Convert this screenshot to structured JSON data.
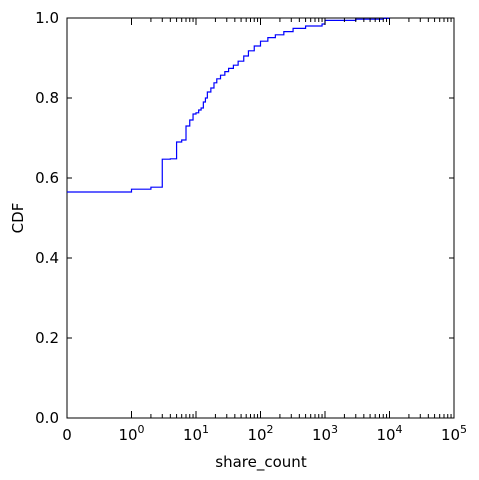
{
  "chart_data": {
    "type": "line",
    "title": "",
    "xlabel": "share_count",
    "ylabel": "CDF",
    "x_scale": "symlog",
    "xlim": [
      0,
      100000
    ],
    "ylim": [
      0,
      1
    ],
    "grid": false,
    "x_tick_labels": [
      {
        "value": 0,
        "base": "0",
        "exp": ""
      },
      {
        "value": 1,
        "base": "10",
        "exp": "0"
      },
      {
        "value": 10,
        "base": "10",
        "exp": "1"
      },
      {
        "value": 100,
        "base": "10",
        "exp": "2"
      },
      {
        "value": 1000,
        "base": "10",
        "exp": "3"
      },
      {
        "value": 10000,
        "base": "10",
        "exp": "4"
      },
      {
        "value": 100000,
        "base": "10",
        "exp": "5"
      }
    ],
    "y_ticks": [
      "0.0",
      "0.2",
      "0.4",
      "0.6",
      "0.8",
      "1.0"
    ],
    "series": [
      {
        "name": "",
        "color": "#0000ff",
        "step": true,
        "points": [
          [
            0,
            0.565
          ],
          [
            1,
            0.572
          ],
          [
            2,
            0.577
          ],
          [
            3,
            0.647
          ],
          [
            4,
            0.648
          ],
          [
            5,
            0.69
          ],
          [
            6,
            0.695
          ],
          [
            7,
            0.73
          ],
          [
            8,
            0.745
          ],
          [
            9,
            0.76
          ],
          [
            10,
            0.763
          ],
          [
            11,
            0.77
          ],
          [
            12,
            0.775
          ],
          [
            13,
            0.79
          ],
          [
            14,
            0.8
          ],
          [
            15,
            0.815
          ],
          [
            17,
            0.825
          ],
          [
            19,
            0.838
          ],
          [
            21,
            0.848
          ],
          [
            24,
            0.857
          ],
          [
            28,
            0.866
          ],
          [
            32,
            0.874
          ],
          [
            38,
            0.882
          ],
          [
            45,
            0.892
          ],
          [
            55,
            0.905
          ],
          [
            65,
            0.918
          ],
          [
            80,
            0.93
          ],
          [
            100,
            0.942
          ],
          [
            130,
            0.951
          ],
          [
            170,
            0.958
          ],
          [
            230,
            0.966
          ],
          [
            320,
            0.974
          ],
          [
            500,
            0.98
          ],
          [
            900,
            0.985
          ],
          [
            1000,
            0.994
          ],
          [
            3000,
            0.997
          ],
          [
            8000,
            0.999
          ],
          [
            10000,
            1.0
          ]
        ]
      }
    ]
  }
}
